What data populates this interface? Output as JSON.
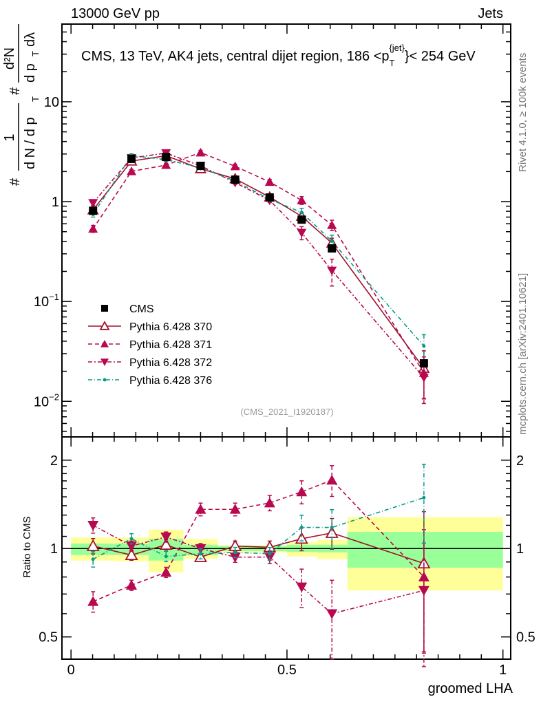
{
  "header": {
    "left": "13000 GeV pp",
    "right": "Jets",
    "side_top": "Rivet 4.1.0, ≥ 100k events",
    "side_bottom": "mcplots.cern.ch [arXiv:2401.10621]"
  },
  "colors": {
    "cms": "#000000",
    "p370": "#a0122a",
    "p371": "#b8084f",
    "p372": "#b8084f",
    "p376": "#0a9a8a",
    "band_outer": "#ffff99",
    "band_inner": "#99ff99"
  },
  "chart_data": {
    "type": "line",
    "title": "CMS, 13 TeV, AK4 jets, central dijet region, 186 <p_T^{jet}< 254 GeV",
    "title_parts": {
      "main": "CMS, 13 TeV, AK4 jets, central dijet region, 186 <p",
      "sub": "T",
      "sup": "{jet}",
      "tail": "}< 254 GeV"
    },
    "watermark": "(CMS_2021_I1920187)",
    "ylabel_parts": [
      "#",
      "1",
      "d N / d p",
      "T",
      "#",
      "d²N",
      "d p",
      "T",
      "dλ"
    ],
    "xlabel": "groomed LHA",
    "ratio_ylabel": "Ratio to CMS",
    "xlim": [
      -0.021,
      1.018
    ],
    "ylim": [
      0.0044,
      60
    ],
    "yscale": "log",
    "ratio_ylim": [
      0.42,
      2.4
    ],
    "x_ticks": [
      "0",
      "0.5",
      "1"
    ],
    "x_tick_values": [
      0,
      0.5,
      1
    ],
    "y_ticks": [
      {
        "v": 0.01,
        "base": "10",
        "exp": "−2"
      },
      {
        "v": 0.1,
        "base": "10",
        "exp": "−1"
      },
      {
        "v": 1,
        "base": "1",
        "exp": ""
      },
      {
        "v": 10,
        "base": "10",
        "exp": ""
      }
    ],
    "ratio_ticks": [
      {
        "v": 0.5,
        "label": "0.5"
      },
      {
        "v": 1,
        "label": "1"
      },
      {
        "v": 2,
        "label": "2"
      }
    ],
    "bin_edges": [
      0,
      0.1,
      0.18,
      0.26,
      0.34,
      0.42,
      0.5,
      0.57,
      0.64,
      1.0
    ],
    "x": [
      0.051,
      0.14,
      0.22,
      0.3,
      0.38,
      0.46,
      0.534,
      0.604,
      0.817
    ],
    "cms": {
      "name": "CMS",
      "values": [
        0.81,
        2.68,
        2.8,
        2.28,
        1.66,
        1.1,
        0.66,
        0.34,
        0.024
      ]
    },
    "band_outer": [
      [
        0.91,
        1.09
      ],
      [
        0.905,
        1.09
      ],
      [
        0.83,
        1.16
      ],
      [
        0.923,
        1.077
      ],
      [
        0.97,
        1.025
      ],
      [
        0.97,
        1.025
      ],
      [
        0.94,
        1.05
      ],
      [
        0.92,
        1.07
      ],
      [
        0.72,
        1.28
      ]
    ],
    "band_inner": [
      [
        0.95,
        1.04
      ],
      [
        0.95,
        1.04
      ],
      [
        0.91,
        1.08
      ],
      [
        0.95,
        1.03
      ],
      [
        0.98,
        1.02
      ],
      [
        0.98,
        1.02
      ],
      [
        0.975,
        1.03
      ],
      [
        0.97,
        1.03
      ],
      [
        0.86,
        1.14
      ]
    ],
    "series": [
      {
        "name": "Pythia 6.428 370",
        "key": "p370",
        "marker": "open-triangle-up",
        "dash": "",
        "ratio": [
          1.02,
          0.95,
          1.03,
          0.935,
          1.02,
          1.01,
          1.08,
          1.13,
          0.89
        ],
        "rel_err": [
          0.06,
          0.04,
          0.04,
          0.03,
          0.04,
          0.05,
          0.09,
          0.12,
          0.5
        ]
      },
      {
        "name": "Pythia 6.428 371",
        "key": "p371",
        "marker": "triangle-up",
        "dash": "6,4",
        "ratio": [
          0.66,
          0.75,
          0.83,
          1.36,
          1.36,
          1.43,
          1.56,
          1.71,
          0.8
        ],
        "rel_err": [
          0.08,
          0.04,
          0.04,
          0.05,
          0.05,
          0.06,
          0.09,
          0.12,
          0.45
        ]
      },
      {
        "name": "Pythia 6.428 372",
        "key": "p372",
        "marker": "triangle-down",
        "dash": "6,3,2,3",
        "ratio": [
          1.2,
          1.02,
          1.095,
          1.0,
          0.935,
          0.935,
          0.74,
          0.6,
          0.72
        ],
        "rel_err": [
          0.06,
          0.04,
          0.04,
          0.04,
          0.04,
          0.05,
          0.15,
          0.3,
          0.45
        ]
      },
      {
        "name": "Pythia 6.428 376",
        "key": "p376",
        "marker": "dot",
        "dash": "6,3,1,3",
        "ratio": [
          0.92,
          1.08,
          0.94,
          0.96,
          0.97,
          0.96,
          1.18,
          1.18,
          1.49
        ],
        "rel_err": [
          0.06,
          0.04,
          0.04,
          0.04,
          0.04,
          0.05,
          0.1,
          0.15,
          0.3
        ]
      }
    ]
  }
}
